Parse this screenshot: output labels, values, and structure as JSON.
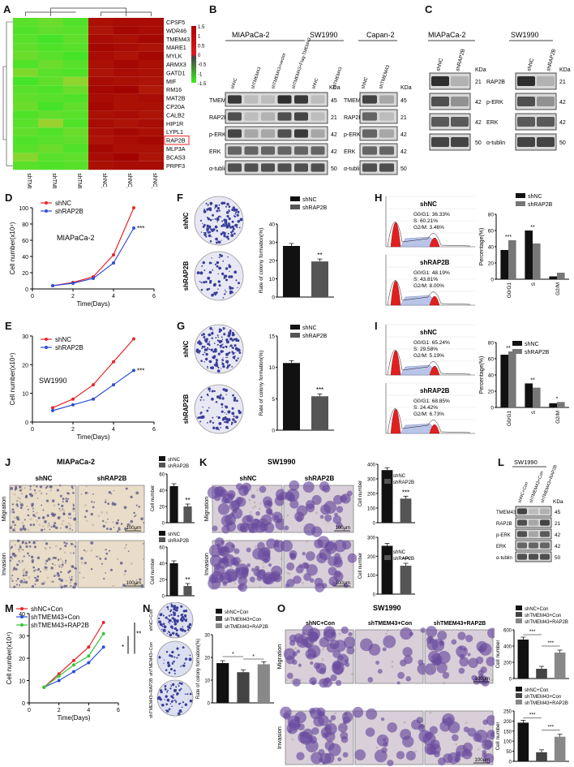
{
  "panel_labels": [
    "A",
    "B",
    "C",
    "D",
    "E",
    "F",
    "G",
    "H",
    "I",
    "J",
    "K",
    "L",
    "M",
    "N",
    "O"
  ],
  "heatmap": {
    "genes": [
      "CPSF5",
      "WDR46",
      "TMEM43",
      "MARE1",
      "MYLK",
      "ARMX3",
      "GATD1",
      "MIF",
      "RM16",
      "MAT2B",
      "CP20A",
      "CALB2",
      "HIP1R",
      "LYPL1",
      "RAP2B",
      "MLP3A",
      "BCAS3",
      "PRPF3"
    ],
    "samples": [
      "shTMEM43_3",
      "shTMEM43_2",
      "shTMEM43_1",
      "shNC_3",
      "shNC_2",
      "shNC_1"
    ],
    "scale_ticks": [
      "1.5",
      "1",
      "0.5",
      "0",
      "-0.5",
      "-1",
      "-1.5"
    ],
    "highlight": "RAP2B",
    "values": [
      [
        -1.2,
        -1.0,
        -1.3,
        1.1,
        1.2,
        1.2
      ],
      [
        -1.3,
        -1.1,
        -1.2,
        1.0,
        1.3,
        1.2
      ],
      [
        -1.2,
        -1.4,
        -1.1,
        1.2,
        1.1,
        1.3
      ],
      [
        -1.1,
        -1.3,
        -1.2,
        1.3,
        1.2,
        1.0
      ],
      [
        -1.0,
        -1.2,
        -1.4,
        1.2,
        1.0,
        1.3
      ],
      [
        -1.3,
        -1.0,
        -1.2,
        1.1,
        1.3,
        1.1
      ],
      [
        -0.8,
        -1.2,
        -1.3,
        1.0,
        1.2,
        1.1
      ],
      [
        -1.4,
        -1.1,
        -0.6,
        1.2,
        1.1,
        1.0
      ],
      [
        -1.2,
        -1.3,
        -1.0,
        1.3,
        1.4,
        0.9
      ],
      [
        -1.1,
        -1.2,
        -1.3,
        1.2,
        1.1,
        1.2
      ],
      [
        -1.0,
        -1.4,
        -1.1,
        1.3,
        1.1,
        1.1
      ],
      [
        -1.3,
        -1.1,
        -1.2,
        1.1,
        1.2,
        1.0
      ],
      [
        -1.2,
        -0.5,
        -1.3,
        1.2,
        1.0,
        1.2
      ],
      [
        -1.1,
        -1.3,
        -1.0,
        1.1,
        1.3,
        1.1
      ],
      [
        -1.3,
        -1.2,
        -1.1,
        1.0,
        1.2,
        1.3
      ],
      [
        -1.2,
        -1.0,
        -1.3,
        1.3,
        1.1,
        1.1
      ],
      [
        -0.7,
        -1.2,
        -1.1,
        1.2,
        1.4,
        1.0
      ],
      [
        -1.2,
        -1.3,
        -1.2,
        1.1,
        1.2,
        1.2
      ]
    ]
  },
  "blot_b": {
    "cell1": "MIAPaCa-2",
    "cell2": "SW1990",
    "cell3": "Capan-2",
    "lanes": [
      "shNC",
      "shTMEM43",
      "shTMEM43+vector",
      "shTMEM43+Flag-TMEM43",
      "shNC",
      "shTMEM43"
    ],
    "lanes_capan": [
      "shNC",
      "shTMEM43"
    ],
    "rows": [
      "TMEM43",
      "RAP2B",
      "p-ERK",
      "ERK",
      "α-tublin"
    ],
    "kda": [
      "45",
      "21",
      "42",
      "42",
      "50"
    ],
    "kda_label": "KDa"
  },
  "blot_c": {
    "cell1": "MIAPaCa-2",
    "cell2": "SW1990",
    "lanes": [
      "shNC",
      "shRAP2B"
    ],
    "rows": [
      "RAP2B",
      "p-ERK",
      "ERK",
      "α-tublin"
    ],
    "kda": [
      "21",
      "42",
      "42",
      "50"
    ],
    "kda_label": "KDa"
  },
  "chart_data": [
    {
      "id": "D",
      "type": "line",
      "title": "MIAPaCa-2",
      "xlabel": "Time(Days)",
      "ylabel": "Cell number(x10⁴)",
      "xlim": [
        0,
        6
      ],
      "ylim": [
        0,
        100
      ],
      "xticks": [
        0,
        2,
        4,
        6
      ],
      "yticks": [
        0,
        20,
        40,
        60,
        80,
        100
      ],
      "series": [
        {
          "name": "shNC",
          "color": "#e8262a",
          "x": [
            1,
            2,
            3,
            4,
            5
          ],
          "y": [
            4,
            8,
            15,
            42,
            100
          ]
        },
        {
          "name": "shRAP2B",
          "color": "#2f4fd6",
          "x": [
            1,
            2,
            3,
            4,
            5
          ],
          "y": [
            4,
            7,
            13,
            32,
            75
          ]
        }
      ],
      "sig": "***"
    },
    {
      "id": "E",
      "type": "line",
      "title": "SW1990",
      "xlabel": "Time(Days)",
      "ylabel": "Cell number(x10⁴)",
      "xlim": [
        0,
        6
      ],
      "ylim": [
        0,
        30
      ],
      "xticks": [
        0,
        2,
        4,
        6
      ],
      "yticks": [
        0,
        10,
        20,
        30
      ],
      "series": [
        {
          "name": "shNC",
          "color": "#e8262a",
          "x": [
            1,
            2,
            3,
            4,
            5
          ],
          "y": [
            5,
            8,
            13,
            21,
            29
          ]
        },
        {
          "name": "shRAP2B",
          "color": "#2f4fd6",
          "x": [
            1,
            2,
            3,
            4,
            5
          ],
          "y": [
            4,
            6,
            8,
            13,
            18
          ]
        }
      ],
      "sig": "***"
    },
    {
      "id": "F",
      "type": "bar",
      "ylabel": "Rate of colony formation(%)",
      "ylim": [
        0,
        40
      ],
      "yticks": [
        0,
        10,
        20,
        30,
        40
      ],
      "categories": [
        "shNC",
        "shRAP2B"
      ],
      "values": [
        28,
        19.5
      ],
      "colors": [
        "#111",
        "#555"
      ],
      "sig": "**",
      "legend": [
        "shNC",
        "shRAP2B"
      ]
    },
    {
      "id": "G",
      "type": "bar",
      "ylabel": "Rate of colony formation(%)",
      "ylim": [
        0,
        15
      ],
      "yticks": [
        0,
        5,
        10,
        15
      ],
      "categories": [
        "shNC",
        "shRAP2B"
      ],
      "values": [
        10.7,
        5.4
      ],
      "colors": [
        "#111",
        "#555"
      ],
      "sig": "***",
      "legend": [
        "shNC",
        "shRAP2B"
      ]
    },
    {
      "id": "H",
      "type": "bar",
      "ylabel": "Percentage(%)",
      "ylim": [
        0,
        80
      ],
      "yticks": [
        0,
        20,
        40,
        60,
        80
      ],
      "categories": [
        "G0/G1",
        "S",
        "G2/M"
      ],
      "series": [
        {
          "name": "shNC",
          "color": "#111",
          "values": [
            36,
            60,
            3.5
          ]
        },
        {
          "name": "shRAP2B",
          "color": "#777",
          "values": [
            48,
            44,
            8
          ]
        }
      ],
      "sig": [
        "***",
        "**",
        ""
      ]
    },
    {
      "id": "I",
      "type": "bar",
      "ylabel": "Percentage(%)",
      "ylim": [
        0,
        80
      ],
      "yticks": [
        0,
        20,
        40,
        60,
        80
      ],
      "categories": [
        "G0/G1",
        "S",
        "G2/M"
      ],
      "series": [
        {
          "name": "shNC",
          "color": "#111",
          "values": [
            65,
            29.6,
            5.2
          ]
        },
        {
          "name": "shRAP2B",
          "color": "#777",
          "values": [
            69,
            24.4,
            6.7
          ]
        }
      ],
      "sig": [
        "**",
        "**",
        "*"
      ]
    },
    {
      "id": "J1",
      "type": "bar",
      "ylabel": "Cell number",
      "ylim": [
        0,
        60
      ],
      "yticks": [
        0,
        20,
        40,
        60
      ],
      "categories": [
        "shNC",
        "shRAP2B"
      ],
      "values": [
        45,
        20
      ],
      "colors": [
        "#111",
        "#555"
      ],
      "sig": "**",
      "legend": [
        "shNC",
        "shRAP2B"
      ]
    },
    {
      "id": "J2",
      "type": "bar",
      "ylabel": "Cell number",
      "ylim": [
        0,
        60
      ],
      "yticks": [
        0,
        20,
        40,
        60
      ],
      "categories": [
        "shNC",
        "shRAP2B"
      ],
      "values": [
        40,
        12
      ],
      "colors": [
        "#111",
        "#555"
      ],
      "sig": "**",
      "legend": [
        "shNC",
        "shRAP2B"
      ]
    },
    {
      "id": "K1",
      "type": "bar",
      "ylabel": "Cell number",
      "ylim": [
        0,
        400
      ],
      "yticks": [
        0,
        100,
        200,
        300,
        400
      ],
      "categories": [
        "shNC",
        "shRAP2B"
      ],
      "values": [
        360,
        165
      ],
      "colors": [
        "#111",
        "#555"
      ],
      "sig": "***",
      "legend": [
        "shNC",
        "shRAP2B"
      ]
    },
    {
      "id": "K2",
      "type": "bar",
      "ylabel": "Cell number",
      "ylim": [
        0,
        300
      ],
      "yticks": [
        0,
        100,
        200,
        300
      ],
      "categories": [
        "shNC",
        "shRAP2B"
      ],
      "values": [
        255,
        150
      ],
      "colors": [
        "#111",
        "#555"
      ],
      "sig": "***",
      "legend": [
        "shNC",
        "shRAP2B"
      ]
    },
    {
      "id": "M",
      "type": "line",
      "xlabel": "Time(Days)",
      "ylabel": "Cell number(x10⁴)",
      "xlim": [
        0,
        6
      ],
      "ylim": [
        0,
        40
      ],
      "xticks": [
        0,
        2,
        4,
        6
      ],
      "yticks": [
        0,
        10,
        20,
        30,
        40
      ],
      "series": [
        {
          "name": "shNC+Con",
          "color": "#e8262a",
          "x": [
            1,
            2,
            3,
            4,
            5
          ],
          "y": [
            7,
            13,
            19,
            25,
            36
          ]
        },
        {
          "name": "shTMEM43+Con",
          "color": "#2f4fd6",
          "x": [
            1,
            2,
            3,
            4,
            5
          ],
          "y": [
            7,
            10,
            14,
            18,
            25
          ]
        },
        {
          "name": "shTMEM43+RAP2B",
          "color": "#3bc43b",
          "x": [
            1,
            2,
            3,
            4,
            5
          ],
          "y": [
            7,
            12,
            17,
            21,
            31
          ]
        }
      ],
      "sig": [
        "*",
        "**"
      ]
    },
    {
      "id": "N",
      "type": "bar",
      "ylabel": "Rate of colony formation(%)",
      "ylim": [
        0,
        30
      ],
      "yticks": [
        0,
        10,
        20,
        30
      ],
      "categories": [
        "shNC+Con",
        "shTMEM43+Con",
        "shTMEM43+RAP2B"
      ],
      "values": [
        17.5,
        13.5,
        17
      ],
      "colors": [
        "#111",
        "#444",
        "#888"
      ],
      "sig": [
        "*",
        "*"
      ],
      "legend": [
        "shNC+Con",
        "shTMEM43+Con",
        "shTMEM43+RAP2B"
      ]
    },
    {
      "id": "O1",
      "type": "bar",
      "ylabel": "Cell number",
      "ylim": [
        0,
        600
      ],
      "yticks": [
        0,
        200,
        400,
        600
      ],
      "categories": [
        "shNC+Con",
        "shTMEM43+Con",
        "shTMEM43+RAP2B"
      ],
      "values": [
        480,
        120,
        320
      ],
      "colors": [
        "#111",
        "#444",
        "#888"
      ],
      "sig": [
        "***",
        "***"
      ],
      "legend": [
        "shNC+Con",
        "shTMEM43+Con",
        "shTMEM43+RAP2B"
      ]
    },
    {
      "id": "O2",
      "type": "bar",
      "ylabel": "Cell number",
      "ylim": [
        0,
        250
      ],
      "yticks": [
        0,
        50,
        100,
        150,
        200,
        250
      ],
      "categories": [
        "shNC+Con",
        "shTMEM43+Con",
        "shTMEM43+RAP2B"
      ],
      "values": [
        192,
        45,
        122
      ],
      "colors": [
        "#111",
        "#444",
        "#888"
      ],
      "sig": [
        "***",
        "***"
      ],
      "legend": [
        "shNC+Con",
        "shTMEM43+Con",
        "shTMEM43+RAP2B"
      ]
    }
  ],
  "flow_h": {
    "top": {
      "title": "shNC",
      "lines": [
        "G0/G1: 36.33%",
        "S: 60.21%",
        "G2/M: 3.46%"
      ]
    },
    "bottom": {
      "title": "shRAP2B",
      "lines": [
        "G0/G1: 48.19%",
        "S: 43.81%",
        "G2/M: 8.00%"
      ]
    }
  },
  "flow_i": {
    "top": {
      "title": "shNC",
      "lines": [
        "G0/G1: 65.24%",
        "S: 29.58%",
        "G2/M: 5.19%"
      ]
    },
    "bottom": {
      "title": "shRAP2B",
      "lines": [
        "G0/G1: 68.85%",
        "S: 24.42%",
        "G2/M: 6.73%"
      ]
    }
  },
  "colony_f": [
    "shNC",
    "shRAP2B"
  ],
  "colony_g": [
    "shNC",
    "shRAP2B"
  ],
  "colony_n": [
    "shNC+\nCon",
    "shTMEM43+\nCon",
    "shTMEM43+\nRAP2B"
  ],
  "micro_j": {
    "title": "MIAPaCa-2",
    "cols": [
      "shNC",
      "shRAP2B"
    ],
    "rows": [
      "Migration",
      "Invasion"
    ],
    "scale": "100μm"
  },
  "micro_k": {
    "title": "SW1990",
    "cols": [
      "shNC",
      "shRAP2B"
    ],
    "rows": [
      "Migration",
      "Invasion"
    ],
    "scale": "100μm"
  },
  "micro_o": {
    "title": "SW1990",
    "cols": [
      "shNC+Con",
      "shTMEM43+Con",
      "shTMEM43+RAP2B"
    ],
    "rows": [
      "Migration",
      "Invasion"
    ],
    "scale": "100μm"
  },
  "blot_l": {
    "title": "SW1990",
    "lanes": [
      "shNC+Con",
      "shTMEM43+Con",
      "shTMEM43+RAP2B"
    ],
    "rows": [
      "TMEM43",
      "RAP2B",
      "p-ERK",
      "ERK",
      "α-tublin"
    ],
    "kda": [
      "45",
      "21",
      "42",
      "42",
      "50"
    ],
    "kda_label": "KDa"
  }
}
